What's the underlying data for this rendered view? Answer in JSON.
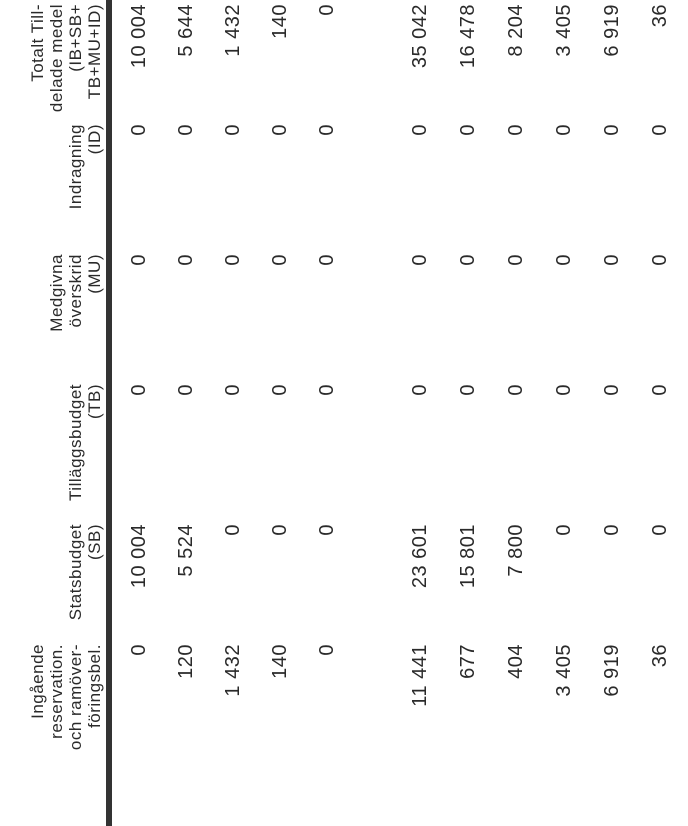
{
  "header": {
    "columns": [
      [
        "Ingående",
        "reservation.",
        "och ramöver-",
        "föringsbel."
      ],
      [
        "Statsbudget",
        "(SB)"
      ],
      [
        "Tilläggsbudget",
        "(TB)"
      ],
      [
        "Medgivna",
        "överskrid",
        "(MU)"
      ],
      [
        "Indragning",
        "(ID)"
      ],
      [
        "Totalt Till-",
        "delade medel",
        "(IB+SB+",
        "TB+MU+ID)"
      ]
    ]
  },
  "table": {
    "groups": [
      [
        [
          "0",
          "10 004",
          "0",
          "0",
          "0",
          "10 004"
        ],
        [
          "120",
          "5 524",
          "0",
          "0",
          "0",
          "5 644"
        ],
        [
          "1 432",
          "0",
          "0",
          "0",
          "0",
          "1 432"
        ],
        [
          "140",
          "0",
          "0",
          "0",
          "0",
          "140"
        ],
        [
          "0",
          "0",
          "0",
          "0",
          "0",
          "0"
        ]
      ],
      [
        [
          "11 441",
          "23 601",
          "0",
          "0",
          "0",
          "35 042"
        ],
        [
          "677",
          "15 801",
          "0",
          "0",
          "0",
          "16 478"
        ],
        [
          "404",
          "7 800",
          "0",
          "0",
          "0",
          "8 204"
        ],
        [
          "3 405",
          "0",
          "0",
          "0",
          "0",
          "3 405"
        ],
        [
          "6 919",
          "0",
          "0",
          "0",
          "0",
          "6 919"
        ],
        [
          "36",
          "0",
          "0",
          "0",
          "0",
          "36"
        ]
      ]
    ]
  }
}
